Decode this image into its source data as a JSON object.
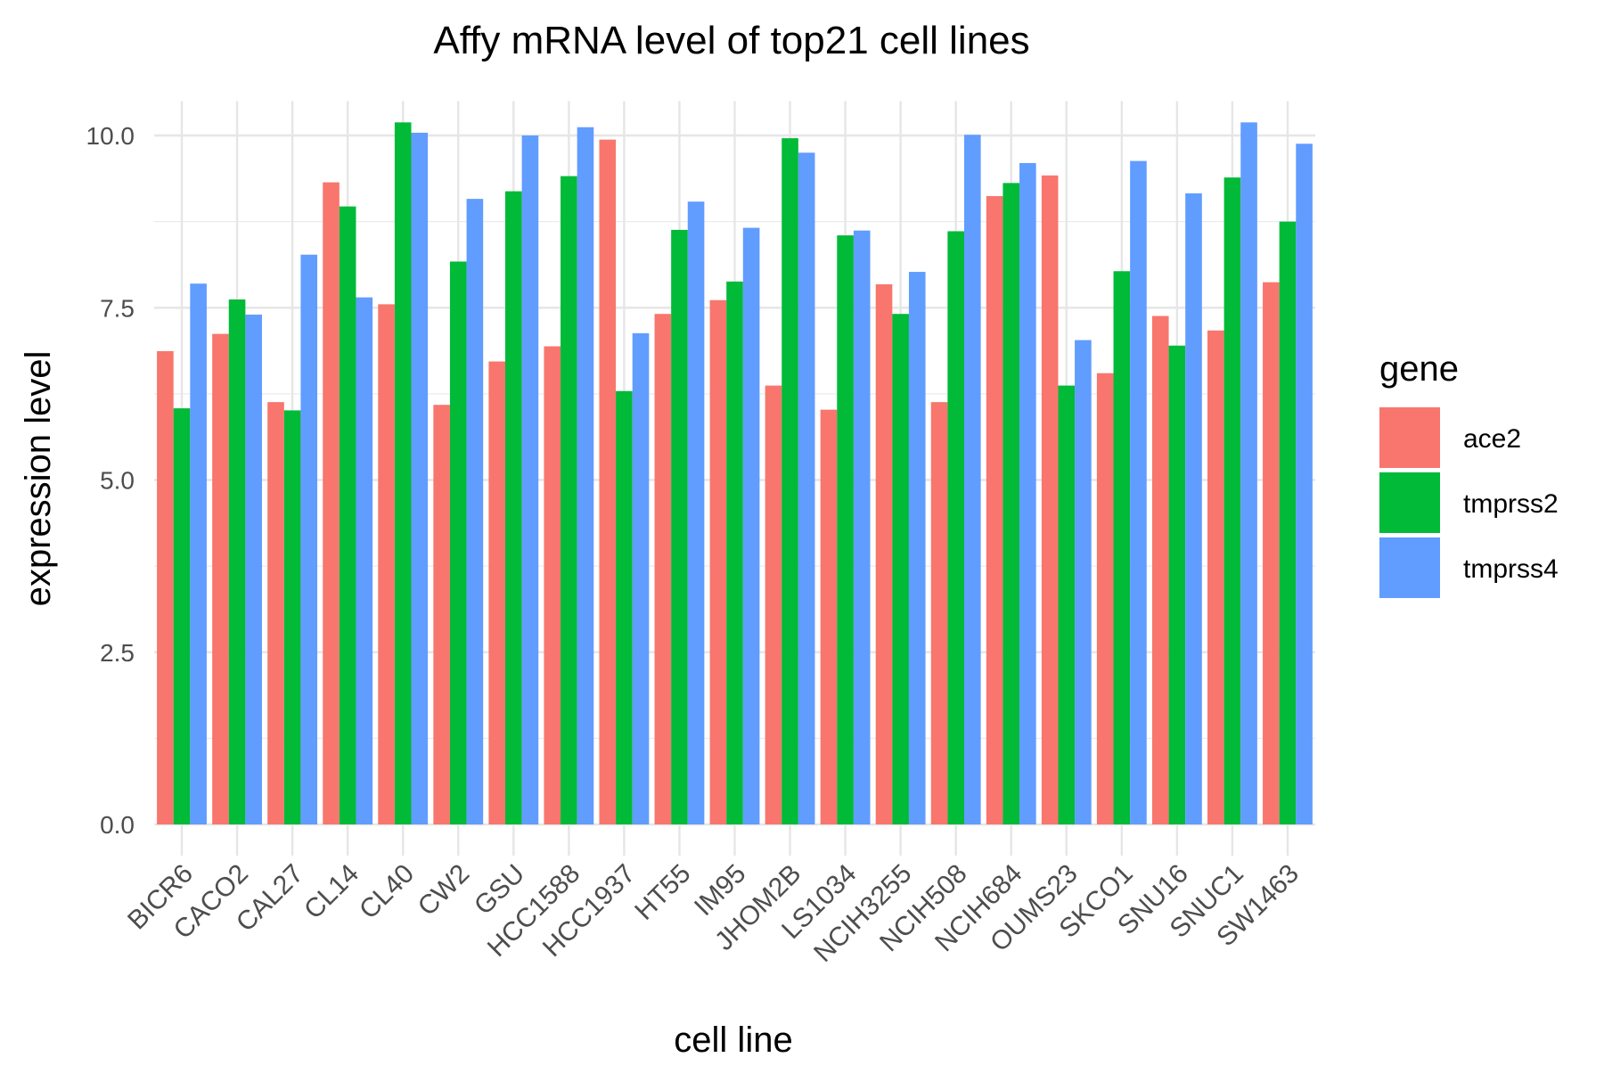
{
  "chart_data": {
    "type": "bar",
    "title": "Affy mRNA level of top21 cell lines",
    "xlabel": "cell line",
    "ylabel": "expression level",
    "ylim": [
      0,
      10.5
    ],
    "yticks": [
      0.0,
      2.5,
      5.0,
      7.5,
      10.0
    ],
    "ytick_labels": [
      "0.0",
      "2.5",
      "5.0",
      "7.5",
      "10.0"
    ],
    "grid": true,
    "legend": {
      "title": "gene",
      "placement": "right"
    },
    "categories": [
      "BICR6",
      "CACO2",
      "CAL27",
      "CL14",
      "CL40",
      "CW2",
      "GSU",
      "HCC1588",
      "HCC1937",
      "HT55",
      "IM95",
      "JHOM2B",
      "LS1034",
      "NCIH3255",
      "NCIH508",
      "NCIH684",
      "OUMS23",
      "SKCO1",
      "SNU16",
      "SNUC1",
      "SW1463"
    ],
    "series": [
      {
        "name": "ace2",
        "color": "#F8766D",
        "values": [
          6.87,
          7.12,
          6.13,
          9.32,
          7.55,
          6.09,
          6.72,
          6.94,
          9.94,
          7.41,
          7.61,
          6.37,
          6.02,
          7.84,
          6.13,
          9.12,
          9.42,
          6.55,
          7.38,
          7.17,
          7.87
        ]
      },
      {
        "name": "tmprss2",
        "color": "#00BA38",
        "values": [
          6.04,
          7.62,
          6.01,
          8.97,
          10.19,
          8.17,
          9.19,
          9.41,
          6.29,
          8.63,
          7.88,
          9.96,
          8.55,
          7.41,
          8.61,
          9.31,
          6.37,
          8.03,
          6.95,
          9.39,
          8.75
        ]
      },
      {
        "name": "tmprss4",
        "color": "#619CFF",
        "values": [
          7.85,
          7.4,
          8.27,
          7.65,
          10.04,
          9.08,
          10.0,
          10.12,
          7.13,
          9.04,
          8.66,
          9.75,
          8.62,
          8.02,
          10.01,
          9.6,
          7.03,
          9.63,
          9.16,
          10.19,
          9.88
        ]
      }
    ]
  }
}
